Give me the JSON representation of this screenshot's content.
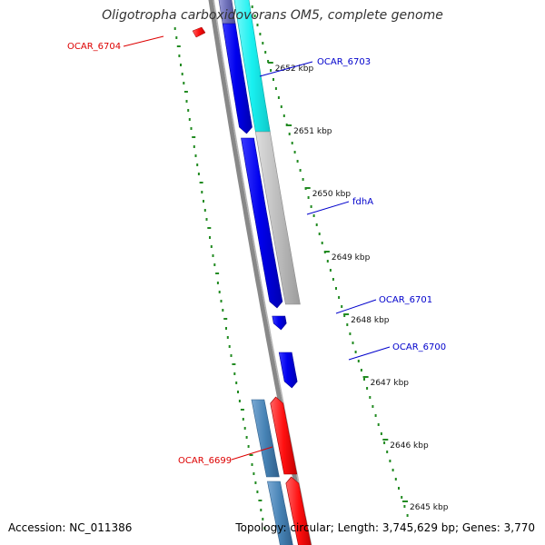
{
  "title": "Oligotropha carboxidovorans OM5, complete genome",
  "footer": {
    "accession": "Accession: NC_011386",
    "summary": "Topology: circular; Length: 3,745,629 bp; Genes: 3,770"
  },
  "colors": {
    "background": "#ffffff",
    "backbone": "#888888",
    "backbone_highlight": "#b5b5b5",
    "forward_strand_genes": "#0000ee",
    "forward_strand_light": "#5a5aff",
    "forward_strand_stroke": "#00009a",
    "forward_strand_purple": "#6d6fb8",
    "reverse_strand_cyan": "#19f0f0",
    "reverse_strand_gray": "#bdbdbd",
    "reverse_strand_red": "#ff1010",
    "outer_steelblue": "#4682b4",
    "scale_dots": "#228b22",
    "label_blue": "#0000cc",
    "label_red": "#dd0000",
    "tick_text": "#111111"
  },
  "scale_ticks": [
    {
      "label": "2652 kbp"
    },
    {
      "label": "2651 kbp"
    },
    {
      "label": "2650 kbp"
    },
    {
      "label": "2649 kbp"
    },
    {
      "label": "2648 kbp"
    },
    {
      "label": "2647 kbp"
    },
    {
      "label": "2646 kbp"
    },
    {
      "label": "2645 kbp"
    }
  ],
  "feature_labels": [
    {
      "name": "OCAR_6703",
      "color": "#0000cc"
    },
    {
      "name": "fdhA",
      "color": "#0000cc"
    },
    {
      "name": "OCAR_6701",
      "color": "#0000cc"
    },
    {
      "name": "OCAR_6700",
      "color": "#0000cc"
    },
    {
      "name": "OCAR_6704",
      "color": "#dd0000"
    },
    {
      "name": "OCAR_6699",
      "color": "#dd0000"
    }
  ]
}
